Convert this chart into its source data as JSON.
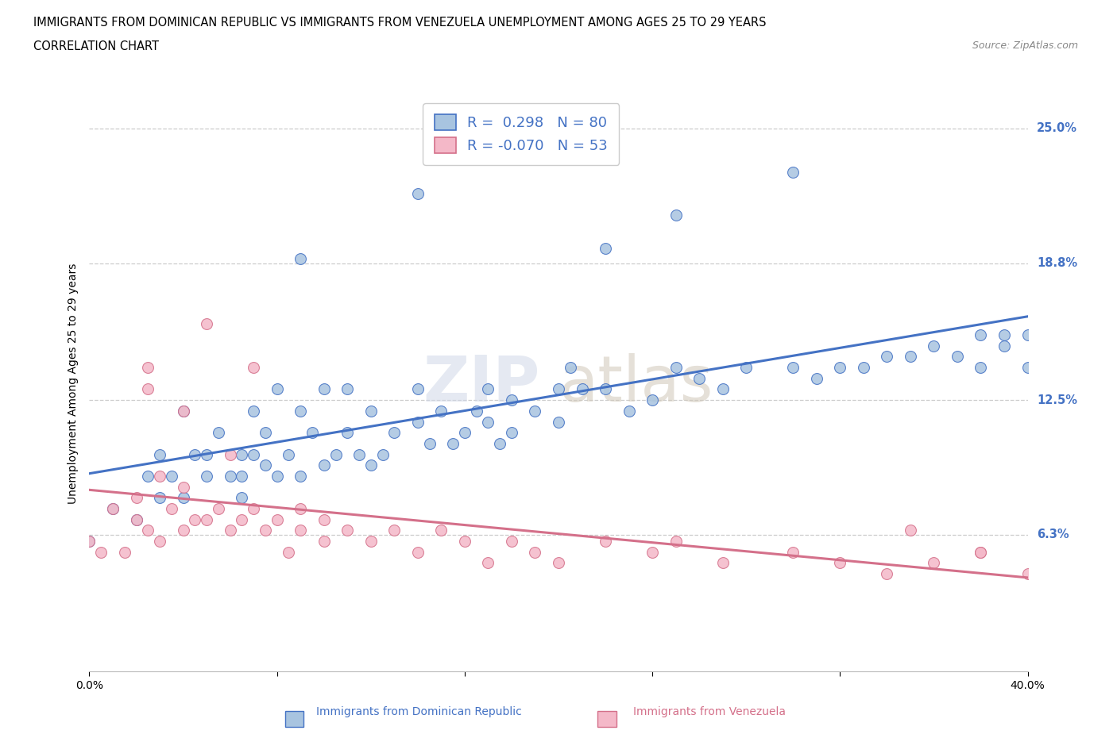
{
  "title_line1": "IMMIGRANTS FROM DOMINICAN REPUBLIC VS IMMIGRANTS FROM VENEZUELA UNEMPLOYMENT AMONG AGES 25 TO 29 YEARS",
  "title_line2": "CORRELATION CHART",
  "source_text": "Source: ZipAtlas.com",
  "ylabel": "Unemployment Among Ages 25 to 29 years",
  "watermark_line1": "ZIP",
  "watermark_line2": "atlas",
  "blue_color": "#a8c4e0",
  "blue_line_color": "#4472c4",
  "pink_color": "#f4b8c8",
  "pink_line_color": "#d4708a",
  "xmin": 0.0,
  "xmax": 0.4,
  "ymin": 0.0,
  "ymax": 0.265,
  "yticks": [
    0.063,
    0.125,
    0.188,
    0.25
  ],
  "ytick_labels": [
    "6.3%",
    "12.5%",
    "18.8%",
    "25.0%"
  ],
  "xticks": [
    0.0,
    0.08,
    0.16,
    0.24,
    0.32,
    0.4
  ],
  "xtick_labels": [
    "0.0%",
    "",
    "",
    "",
    "",
    "40.0%"
  ],
  "blue_R": 0.298,
  "blue_N": 80,
  "pink_R": -0.07,
  "pink_N": 53,
  "blue_scatter_x": [
    0.0,
    0.01,
    0.02,
    0.025,
    0.03,
    0.03,
    0.035,
    0.04,
    0.04,
    0.045,
    0.05,
    0.05,
    0.055,
    0.06,
    0.065,
    0.065,
    0.065,
    0.07,
    0.07,
    0.075,
    0.075,
    0.08,
    0.08,
    0.085,
    0.09,
    0.09,
    0.095,
    0.1,
    0.1,
    0.105,
    0.11,
    0.11,
    0.115,
    0.12,
    0.12,
    0.125,
    0.13,
    0.14,
    0.14,
    0.145,
    0.15,
    0.155,
    0.16,
    0.165,
    0.17,
    0.17,
    0.175,
    0.18,
    0.18,
    0.19,
    0.2,
    0.2,
    0.205,
    0.21,
    0.22,
    0.23,
    0.24,
    0.25,
    0.26,
    0.27,
    0.28,
    0.3,
    0.31,
    0.32,
    0.33,
    0.34,
    0.35,
    0.36,
    0.37,
    0.38,
    0.38,
    0.39,
    0.39,
    0.4,
    0.4,
    0.25,
    0.14,
    0.09,
    0.22,
    0.3
  ],
  "blue_scatter_y": [
    0.06,
    0.075,
    0.07,
    0.09,
    0.08,
    0.1,
    0.09,
    0.08,
    0.12,
    0.1,
    0.1,
    0.09,
    0.11,
    0.09,
    0.08,
    0.1,
    0.09,
    0.1,
    0.12,
    0.11,
    0.095,
    0.09,
    0.13,
    0.1,
    0.09,
    0.12,
    0.11,
    0.095,
    0.13,
    0.1,
    0.11,
    0.13,
    0.1,
    0.12,
    0.095,
    0.1,
    0.11,
    0.13,
    0.115,
    0.105,
    0.12,
    0.105,
    0.11,
    0.12,
    0.115,
    0.13,
    0.105,
    0.125,
    0.11,
    0.12,
    0.13,
    0.115,
    0.14,
    0.13,
    0.13,
    0.12,
    0.125,
    0.14,
    0.135,
    0.13,
    0.14,
    0.14,
    0.135,
    0.14,
    0.14,
    0.145,
    0.145,
    0.15,
    0.145,
    0.155,
    0.14,
    0.15,
    0.155,
    0.155,
    0.14,
    0.21,
    0.22,
    0.19,
    0.195,
    0.23
  ],
  "pink_scatter_x": [
    0.0,
    0.005,
    0.01,
    0.015,
    0.02,
    0.02,
    0.025,
    0.025,
    0.03,
    0.03,
    0.035,
    0.04,
    0.04,
    0.045,
    0.05,
    0.055,
    0.06,
    0.065,
    0.07,
    0.075,
    0.08,
    0.085,
    0.09,
    0.09,
    0.1,
    0.1,
    0.11,
    0.12,
    0.13,
    0.14,
    0.15,
    0.16,
    0.17,
    0.18,
    0.19,
    0.2,
    0.22,
    0.24,
    0.25,
    0.27,
    0.3,
    0.32,
    0.34,
    0.36,
    0.38,
    0.4,
    0.05,
    0.025,
    0.07,
    0.04,
    0.06,
    0.35,
    0.38
  ],
  "pink_scatter_y": [
    0.06,
    0.055,
    0.075,
    0.055,
    0.07,
    0.08,
    0.065,
    0.14,
    0.09,
    0.06,
    0.075,
    0.065,
    0.085,
    0.07,
    0.07,
    0.075,
    0.065,
    0.07,
    0.075,
    0.065,
    0.07,
    0.055,
    0.065,
    0.075,
    0.06,
    0.07,
    0.065,
    0.06,
    0.065,
    0.055,
    0.065,
    0.06,
    0.05,
    0.06,
    0.055,
    0.05,
    0.06,
    0.055,
    0.06,
    0.05,
    0.055,
    0.05,
    0.045,
    0.05,
    0.055,
    0.045,
    0.16,
    0.13,
    0.14,
    0.12,
    0.1,
    0.065,
    0.055
  ]
}
